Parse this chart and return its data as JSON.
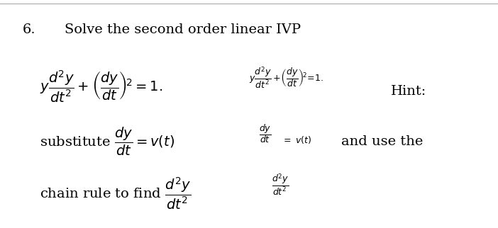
{
  "bg_color": "#ffffff",
  "text_color": "#000000",
  "line_color": "#aaaaaa",
  "fig_width": 7.02,
  "fig_height": 3.22,
  "number_text": "6.",
  "title_text": "Solve the second order linear IVP",
  "number_fontsize": 14,
  "title_fontsize": 14,
  "main_math_fontsize": 14,
  "small_math_fontsize": 9,
  "hint_fontsize": 14,
  "body_fontsize": 14
}
